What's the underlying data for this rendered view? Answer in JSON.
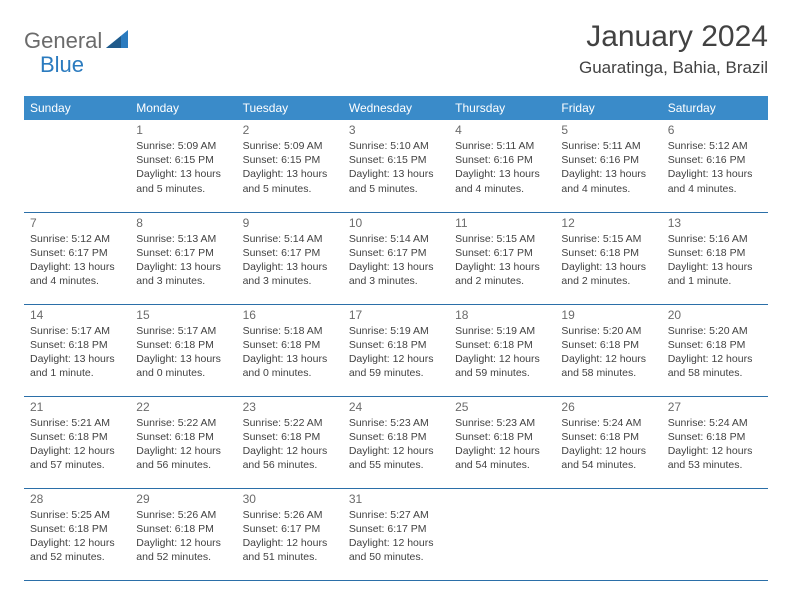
{
  "logo": {
    "part1": "General",
    "part2": "Blue"
  },
  "title": "January 2024",
  "location": "Guaratinga, Bahia, Brazil",
  "colors": {
    "header_bg": "#3a8bc9",
    "header_text": "#ffffff",
    "row_border": "#2b6fa8",
    "body_text": "#424242",
    "daynum_text": "#6b6b6b",
    "logo_gray": "#6b6b6b",
    "logo_blue": "#2b7bbf",
    "page_bg": "#ffffff"
  },
  "typography": {
    "title_fontsize": 30,
    "location_fontsize": 17,
    "header_fontsize": 12,
    "daynum_fontsize": 12,
    "info_fontsize": 10.5
  },
  "columns": [
    "Sunday",
    "Monday",
    "Tuesday",
    "Wednesday",
    "Thursday",
    "Friday",
    "Saturday"
  ],
  "weeks": [
    [
      null,
      {
        "day": "1",
        "sunrise": "Sunrise: 5:09 AM",
        "sunset": "Sunset: 6:15 PM",
        "daylight": "Daylight: 13 hours and 5 minutes."
      },
      {
        "day": "2",
        "sunrise": "Sunrise: 5:09 AM",
        "sunset": "Sunset: 6:15 PM",
        "daylight": "Daylight: 13 hours and 5 minutes."
      },
      {
        "day": "3",
        "sunrise": "Sunrise: 5:10 AM",
        "sunset": "Sunset: 6:15 PM",
        "daylight": "Daylight: 13 hours and 5 minutes."
      },
      {
        "day": "4",
        "sunrise": "Sunrise: 5:11 AM",
        "sunset": "Sunset: 6:16 PM",
        "daylight": "Daylight: 13 hours and 4 minutes."
      },
      {
        "day": "5",
        "sunrise": "Sunrise: 5:11 AM",
        "sunset": "Sunset: 6:16 PM",
        "daylight": "Daylight: 13 hours and 4 minutes."
      },
      {
        "day": "6",
        "sunrise": "Sunrise: 5:12 AM",
        "sunset": "Sunset: 6:16 PM",
        "daylight": "Daylight: 13 hours and 4 minutes."
      }
    ],
    [
      {
        "day": "7",
        "sunrise": "Sunrise: 5:12 AM",
        "sunset": "Sunset: 6:17 PM",
        "daylight": "Daylight: 13 hours and 4 minutes."
      },
      {
        "day": "8",
        "sunrise": "Sunrise: 5:13 AM",
        "sunset": "Sunset: 6:17 PM",
        "daylight": "Daylight: 13 hours and 3 minutes."
      },
      {
        "day": "9",
        "sunrise": "Sunrise: 5:14 AM",
        "sunset": "Sunset: 6:17 PM",
        "daylight": "Daylight: 13 hours and 3 minutes."
      },
      {
        "day": "10",
        "sunrise": "Sunrise: 5:14 AM",
        "sunset": "Sunset: 6:17 PM",
        "daylight": "Daylight: 13 hours and 3 minutes."
      },
      {
        "day": "11",
        "sunrise": "Sunrise: 5:15 AM",
        "sunset": "Sunset: 6:17 PM",
        "daylight": "Daylight: 13 hours and 2 minutes."
      },
      {
        "day": "12",
        "sunrise": "Sunrise: 5:15 AM",
        "sunset": "Sunset: 6:18 PM",
        "daylight": "Daylight: 13 hours and 2 minutes."
      },
      {
        "day": "13",
        "sunrise": "Sunrise: 5:16 AM",
        "sunset": "Sunset: 6:18 PM",
        "daylight": "Daylight: 13 hours and 1 minute."
      }
    ],
    [
      {
        "day": "14",
        "sunrise": "Sunrise: 5:17 AM",
        "sunset": "Sunset: 6:18 PM",
        "daylight": "Daylight: 13 hours and 1 minute."
      },
      {
        "day": "15",
        "sunrise": "Sunrise: 5:17 AM",
        "sunset": "Sunset: 6:18 PM",
        "daylight": "Daylight: 13 hours and 0 minutes."
      },
      {
        "day": "16",
        "sunrise": "Sunrise: 5:18 AM",
        "sunset": "Sunset: 6:18 PM",
        "daylight": "Daylight: 13 hours and 0 minutes."
      },
      {
        "day": "17",
        "sunrise": "Sunrise: 5:19 AM",
        "sunset": "Sunset: 6:18 PM",
        "daylight": "Daylight: 12 hours and 59 minutes."
      },
      {
        "day": "18",
        "sunrise": "Sunrise: 5:19 AM",
        "sunset": "Sunset: 6:18 PM",
        "daylight": "Daylight: 12 hours and 59 minutes."
      },
      {
        "day": "19",
        "sunrise": "Sunrise: 5:20 AM",
        "sunset": "Sunset: 6:18 PM",
        "daylight": "Daylight: 12 hours and 58 minutes."
      },
      {
        "day": "20",
        "sunrise": "Sunrise: 5:20 AM",
        "sunset": "Sunset: 6:18 PM",
        "daylight": "Daylight: 12 hours and 58 minutes."
      }
    ],
    [
      {
        "day": "21",
        "sunrise": "Sunrise: 5:21 AM",
        "sunset": "Sunset: 6:18 PM",
        "daylight": "Daylight: 12 hours and 57 minutes."
      },
      {
        "day": "22",
        "sunrise": "Sunrise: 5:22 AM",
        "sunset": "Sunset: 6:18 PM",
        "daylight": "Daylight: 12 hours and 56 minutes."
      },
      {
        "day": "23",
        "sunrise": "Sunrise: 5:22 AM",
        "sunset": "Sunset: 6:18 PM",
        "daylight": "Daylight: 12 hours and 56 minutes."
      },
      {
        "day": "24",
        "sunrise": "Sunrise: 5:23 AM",
        "sunset": "Sunset: 6:18 PM",
        "daylight": "Daylight: 12 hours and 55 minutes."
      },
      {
        "day": "25",
        "sunrise": "Sunrise: 5:23 AM",
        "sunset": "Sunset: 6:18 PM",
        "daylight": "Daylight: 12 hours and 54 minutes."
      },
      {
        "day": "26",
        "sunrise": "Sunrise: 5:24 AM",
        "sunset": "Sunset: 6:18 PM",
        "daylight": "Daylight: 12 hours and 54 minutes."
      },
      {
        "day": "27",
        "sunrise": "Sunrise: 5:24 AM",
        "sunset": "Sunset: 6:18 PM",
        "daylight": "Daylight: 12 hours and 53 minutes."
      }
    ],
    [
      {
        "day": "28",
        "sunrise": "Sunrise: 5:25 AM",
        "sunset": "Sunset: 6:18 PM",
        "daylight": "Daylight: 12 hours and 52 minutes."
      },
      {
        "day": "29",
        "sunrise": "Sunrise: 5:26 AM",
        "sunset": "Sunset: 6:18 PM",
        "daylight": "Daylight: 12 hours and 52 minutes."
      },
      {
        "day": "30",
        "sunrise": "Sunrise: 5:26 AM",
        "sunset": "Sunset: 6:17 PM",
        "daylight": "Daylight: 12 hours and 51 minutes."
      },
      {
        "day": "31",
        "sunrise": "Sunrise: 5:27 AM",
        "sunset": "Sunset: 6:17 PM",
        "daylight": "Daylight: 12 hours and 50 minutes."
      },
      null,
      null,
      null
    ]
  ]
}
